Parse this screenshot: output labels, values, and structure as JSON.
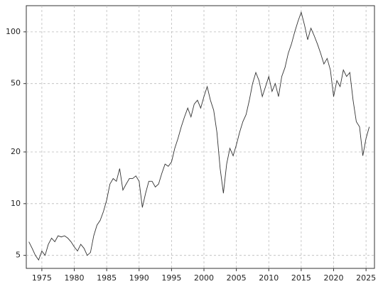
{
  "chart_data": {
    "type": "line",
    "log_y": true,
    "grid": true,
    "color": "#333333",
    "x": [
      1973,
      1973.5,
      1974,
      1974.5,
      1975,
      1975.5,
      1976,
      1976.5,
      1977,
      1977.5,
      1978,
      1978.5,
      1979,
      1979.5,
      1980,
      1980.5,
      1981,
      1981.5,
      1982,
      1982.5,
      1983,
      1983.5,
      1984,
      1984.5,
      1985,
      1985.5,
      1986,
      1986.5,
      1987,
      1987.5,
      1988,
      1988.5,
      1989,
      1989.5,
      1990,
      1990.5,
      1991,
      1991.5,
      1992,
      1992.5,
      1993,
      1993.5,
      1994,
      1994.5,
      1995,
      1995.5,
      1996,
      1996.5,
      1997,
      1997.5,
      1998,
      1998.5,
      1999,
      1999.5,
      2000,
      2000.5,
      2001,
      2001.5,
      2002,
      2002.5,
      2003,
      2003.5,
      2004,
      2004.5,
      2005,
      2005.5,
      2006,
      2006.5,
      2007,
      2007.5,
      2008,
      2008.5,
      2009,
      2009.5,
      2010,
      2010.5,
      2011,
      2011.5,
      2012,
      2012.5,
      2013,
      2013.5,
      2014,
      2014.5,
      2015,
      2015.5,
      2016,
      2016.5,
      2017,
      2017.5,
      2018,
      2018.5,
      2019,
      2019.5,
      2020,
      2020.5,
      2021,
      2021.5,
      2022,
      2022.5,
      2023,
      2023.5,
      2024,
      2024.5,
      2025,
      2025.5
    ],
    "values": [
      6.0,
      5.5,
      5.0,
      4.7,
      5.3,
      5.0,
      5.8,
      6.3,
      6.0,
      6.5,
      6.4,
      6.5,
      6.3,
      6.0,
      5.6,
      5.3,
      5.8,
      5.5,
      5.0,
      5.2,
      6.5,
      7.5,
      8.0,
      9.0,
      10.5,
      13,
      14,
      13.5,
      16,
      12,
      13,
      14,
      14,
      14.5,
      13.5,
      9.5,
      11.5,
      13.5,
      13.5,
      12.5,
      13,
      15,
      17,
      16.5,
      17.5,
      21,
      24,
      28,
      32,
      36,
      32,
      38,
      40,
      36,
      42,
      48,
      40,
      35,
      26,
      16,
      11.5,
      17,
      21,
      19,
      22,
      26,
      30,
      33,
      40,
      50,
      58,
      52,
      42,
      48,
      55,
      45,
      50,
      42,
      55,
      62,
      75,
      85,
      100,
      115,
      130,
      110,
      90,
      105,
      95,
      85,
      75,
      65,
      70,
      60,
      42,
      52,
      48,
      60,
      55,
      58,
      40,
      30,
      28,
      19,
      24,
      28
    ],
    "xlim": [
      1972.6,
      2026.3
    ],
    "xticks": [
      1975,
      1980,
      1985,
      1990,
      1995,
      2000,
      2005,
      2010,
      2015,
      2020,
      2025
    ],
    "ylim": [
      4.2,
      142
    ],
    "yticks": [
      5,
      10,
      20,
      50,
      100
    ]
  }
}
